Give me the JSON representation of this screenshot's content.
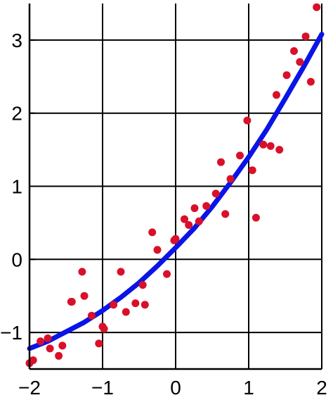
{
  "chart_data": {
    "type": "scatter",
    "title": "",
    "xlabel": "",
    "ylabel": "",
    "xlim": [
      -2,
      2
    ],
    "ylim": [
      -1.5,
      3.5
    ],
    "x_ticks": [
      -2,
      -1,
      0,
      1,
      2
    ],
    "y_ticks": [
      -1,
      0,
      1,
      2,
      3
    ],
    "x_tick_labels": [
      "−2",
      "−1",
      "0",
      "1",
      "2"
    ],
    "y_tick_labels": [
      "−1",
      "0",
      "1",
      "2",
      "3"
    ],
    "grid": true,
    "legend": "none",
    "series": [
      {
        "kind": "points",
        "color": "#d9102a",
        "x": [
          -2.0,
          -1.95,
          -1.85,
          -1.75,
          -1.72,
          -1.6,
          -1.55,
          -1.43,
          -1.42,
          -1.28,
          -1.25,
          -1.15,
          -1.05,
          -1.0,
          -0.98,
          -0.85,
          -0.75,
          -0.68,
          -0.55,
          -0.45,
          -0.42,
          -0.32,
          -0.25,
          -0.12,
          -0.02,
          0.0,
          0.12,
          0.18,
          0.26,
          0.32,
          0.42,
          0.55,
          0.62,
          0.68,
          0.75,
          0.88,
          0.98,
          1.05,
          1.1,
          1.2,
          1.3,
          1.38,
          1.42,
          1.52,
          1.62,
          1.7,
          1.78,
          1.85,
          1.93
        ],
        "y": [
          -1.42,
          -1.38,
          -1.12,
          -1.08,
          -1.22,
          -1.32,
          -1.18,
          -0.58,
          -0.58,
          -0.17,
          -0.5,
          -0.77,
          -1.15,
          -0.92,
          -0.95,
          -0.62,
          -0.17,
          -0.72,
          -0.6,
          -0.35,
          -0.62,
          0.37,
          0.13,
          -0.2,
          0.26,
          0.28,
          0.55,
          0.47,
          0.7,
          0.52,
          0.73,
          0.9,
          1.33,
          0.62,
          1.1,
          1.42,
          1.9,
          1.22,
          0.57,
          1.57,
          1.55,
          2.25,
          1.5,
          2.52,
          2.85,
          2.7,
          3.05,
          2.43,
          3.45
        ]
      },
      {
        "kind": "fit",
        "color": "#0a14e6",
        "x": [
          -2.0,
          -1.75,
          -1.5,
          -1.25,
          -1.0,
          -0.75,
          -0.5,
          -0.25,
          0.0,
          0.25,
          0.5,
          0.75,
          1.0,
          1.25,
          1.5,
          1.75,
          2.0
        ],
        "y": [
          -1.22,
          -1.12,
          -0.99,
          -0.86,
          -0.7,
          -0.52,
          -0.32,
          -0.09,
          0.16,
          0.42,
          0.72,
          1.05,
          1.4,
          1.78,
          2.2,
          2.63,
          3.08
        ]
      }
    ]
  }
}
